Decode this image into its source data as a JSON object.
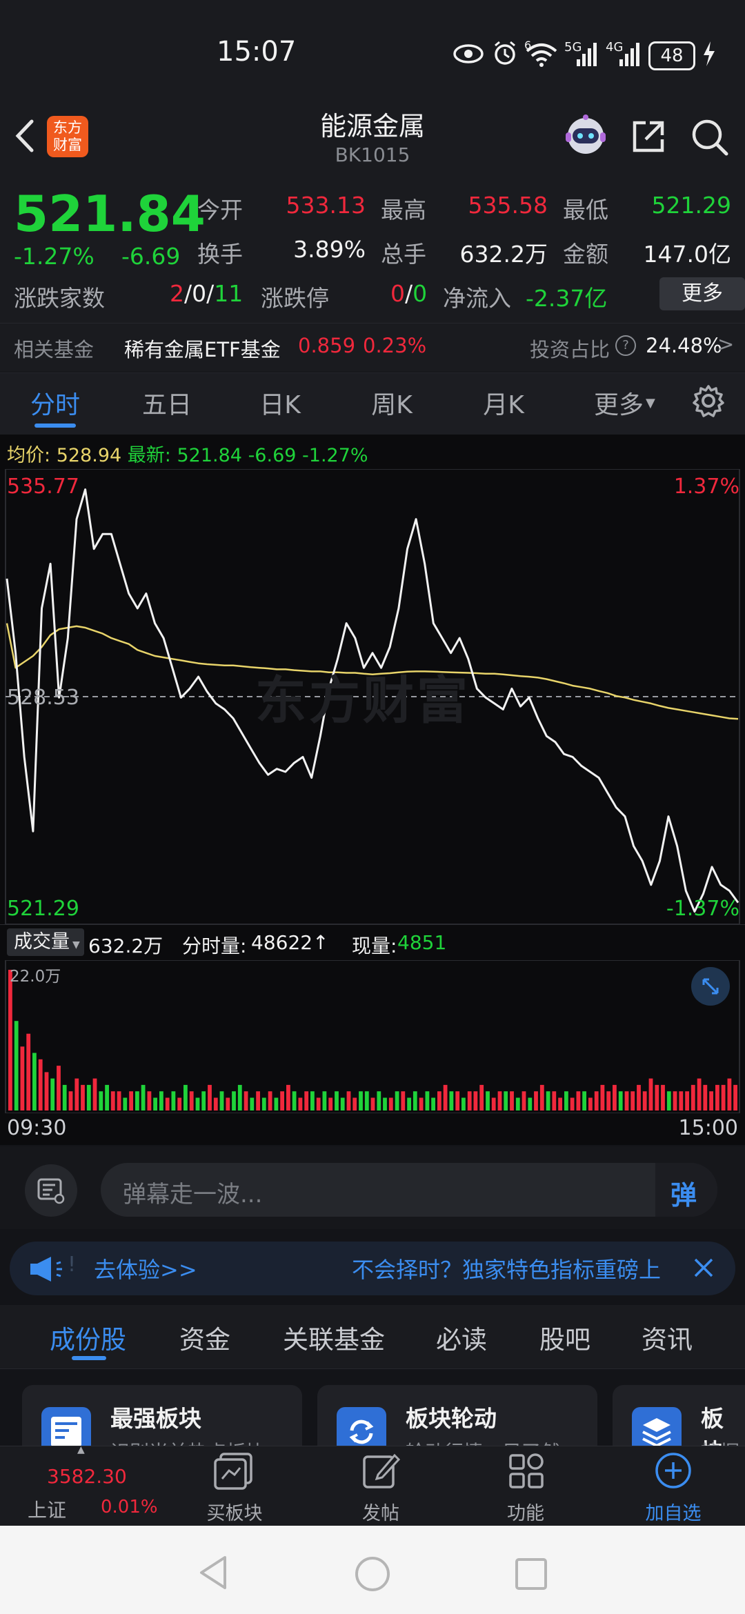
{
  "status_bar": {
    "time": "15:07",
    "signal_5g": "5G",
    "signal_4g": "4G",
    "wifi_badge": "6",
    "battery": "48"
  },
  "header": {
    "title": "能源金属",
    "code": "BK1015",
    "logo_text_1": "东方",
    "logo_text_2": "财富"
  },
  "quote": {
    "price": "521.84",
    "change_pct": "-1.27%",
    "change_abs": "-6.69",
    "open_label": "今开",
    "open": "533.13",
    "high_label": "最高",
    "high": "535.58",
    "low_label": "最低",
    "low": "521.29",
    "turnover_label": "换手",
    "turnover": "3.89%",
    "volume_label": "总手",
    "volume": "632.2万",
    "amount_label": "金额",
    "amount": "147.0亿",
    "breadth_label": "涨跌家数",
    "breadth_up": "2",
    "breadth_flat": "0",
    "breadth_down": "11",
    "sep": "/",
    "limit_label": "涨跌停",
    "limit_up": "0",
    "limit_down": "0",
    "netflow_label": "净流入",
    "netflow": "-2.37亿",
    "more_button": "更多"
  },
  "fund_bar": {
    "label": "相关基金",
    "fund_name": "稀有金属ETF基金",
    "fund_price": "0.859",
    "fund_change": "0.23%",
    "ratio_label": "投资占比",
    "ratio_value": "24.48%",
    "arrow": ">"
  },
  "tabs": [
    "分时",
    "五日",
    "日K",
    "周K",
    "月K",
    "更多"
  ],
  "chart_header": {
    "avg_label": "均价:",
    "avg_value": "528.94",
    "latest_label": "最新:",
    "latest_value": "521.84",
    "latest_change": "-6.69",
    "latest_pct": "-1.27%"
  },
  "chart_labels": {
    "y_top": "535.77",
    "y_mid": "528.53",
    "y_bottom": "521.29",
    "pct_top": "1.37%",
    "pct_bottom": "-1.37%",
    "watermark": "东方财富"
  },
  "volume_header": {
    "dropdown_label": "成交量",
    "total": "632.2万",
    "period_label": "分时量:",
    "period_value": "48622↑",
    "now_label": "现量:",
    "now_value": "4851",
    "scale": "22.0万"
  },
  "time_axis": {
    "start": "09:30",
    "end": "15:00"
  },
  "chart_data": {
    "type": "line",
    "title": "",
    "x_range": [
      "09:30",
      "15:00"
    ],
    "ylim": [
      521.29,
      535.77
    ],
    "pct_range": [
      "-1.37%",
      "1.37%"
    ],
    "reference": 528.53,
    "series": [
      {
        "values": [
          532.5,
          530.0,
          526.5,
          524.0,
          531.5,
          533.0,
          528.5,
          530.5,
          534.5,
          535.5,
          533.5,
          534.0,
          534.0,
          533.0,
          532.0,
          531.5,
          532.0,
          531.0,
          530.5,
          529.5,
          528.5,
          528.8,
          529.2,
          528.7,
          528.3,
          528.1,
          527.8,
          527.3,
          526.8,
          526.3,
          525.9,
          526.1,
          526.0,
          526.3,
          526.5,
          525.8,
          527.2,
          528.8,
          529.8,
          531.0,
          530.5,
          529.5,
          530.0,
          529.5,
          530.2,
          531.5,
          533.5,
          534.5,
          533.0,
          531.0,
          530.5,
          530.0,
          530.5,
          529.8,
          528.8,
          528.5,
          528.3,
          528.1,
          528.8,
          528.2,
          528.5,
          527.8,
          527.2,
          527.0,
          526.6,
          526.5,
          526.2,
          526.0,
          525.8,
          525.3,
          524.8,
          524.5,
          523.5,
          523.0,
          522.2,
          523.0,
          524.5,
          523.5,
          522.0,
          521.3,
          521.9,
          522.8,
          522.2,
          522.0,
          521.6
        ]
      },
      {
        "values": [
          531.0,
          529.5,
          529.7,
          529.9,
          530.2,
          530.6,
          530.8,
          530.85,
          530.9,
          530.85,
          530.75,
          530.65,
          530.5,
          530.4,
          530.3,
          530.1,
          530.0,
          529.9,
          529.85,
          529.8,
          529.75,
          529.7,
          529.65,
          529.62,
          529.6,
          529.58,
          529.58,
          529.55,
          529.52,
          529.5,
          529.48,
          529.45,
          529.45,
          529.42,
          529.4,
          529.38,
          529.38,
          529.35,
          529.35,
          529.33,
          529.33,
          529.3,
          529.28,
          529.3,
          529.32,
          529.35,
          529.37,
          529.38,
          529.38,
          529.37,
          529.36,
          529.35,
          529.34,
          529.33,
          529.32,
          529.3,
          529.3,
          529.28,
          529.25,
          529.22,
          529.2,
          529.17,
          529.12,
          529.05,
          528.98,
          528.9,
          528.85,
          528.8,
          528.72,
          528.65,
          528.55,
          528.5,
          528.42,
          528.36,
          528.3,
          528.22,
          528.15,
          528.1,
          528.05,
          528.0,
          527.95,
          527.9,
          527.85,
          527.8,
          527.78
        ]
      }
    ],
    "volume": {
      "ymax": 220000,
      "bars": [
        22,
        14,
        10,
        12,
        9,
        8,
        6,
        5,
        7,
        4,
        3,
        5,
        4,
        4,
        5,
        3,
        4,
        3,
        3,
        2,
        3,
        3,
        4,
        3,
        2,
        3,
        2,
        3,
        2,
        4,
        3,
        2,
        3,
        4,
        2,
        3,
        2,
        3,
        4,
        3,
        2,
        3,
        2,
        3,
        2,
        3,
        4,
        3,
        2,
        3,
        3,
        2,
        3,
        2,
        3,
        2,
        3,
        2,
        3,
        3,
        2,
        3,
        2,
        2,
        3,
        3,
        2,
        3,
        2,
        3,
        2,
        3,
        4,
        3,
        3,
        2,
        3,
        3,
        4,
        3,
        2,
        3,
        3,
        3,
        2,
        3,
        2,
        3,
        4,
        3,
        3,
        2,
        3,
        2,
        3,
        3,
        2,
        3,
        4,
        3,
        4,
        3,
        3,
        3,
        4,
        3,
        5,
        4,
        4,
        3,
        3,
        3,
        3,
        4,
        5,
        4,
        3,
        4,
        4,
        5,
        4
      ],
      "unit": "万",
      "colors": [
        "up",
        "down",
        "up",
        "up",
        "down",
        "up",
        "up",
        "down",
        "up",
        "down",
        "up",
        "up",
        "up",
        "down",
        "up",
        "down",
        "down",
        "up",
        "up",
        "down",
        "up",
        "down",
        "down",
        "up",
        "down",
        "down",
        "up",
        "down",
        "up",
        "down",
        "up",
        "down",
        "down",
        "up",
        "up",
        "down",
        "up",
        "down",
        "down",
        "up",
        "down",
        "up",
        "down",
        "up",
        "down",
        "up",
        "up",
        "down",
        "up",
        "up",
        "down",
        "up",
        "down",
        "up",
        "down",
        "down",
        "up",
        "up",
        "down",
        "down",
        "up",
        "down",
        "down",
        "up",
        "down",
        "up",
        "down",
        "down",
        "up",
        "down",
        "down",
        "up",
        "up",
        "down",
        "up",
        "down",
        "up",
        "up",
        "up",
        "down",
        "up",
        "up",
        "down",
        "up",
        "down",
        "up",
        "down",
        "up",
        "up",
        "down",
        "up",
        "up",
        "down",
        "up",
        "up",
        "down",
        "up",
        "up",
        "up",
        "up",
        "up",
        "down",
        "up",
        "up",
        "up",
        "up",
        "up",
        "up",
        "up",
        "down",
        "up",
        "up",
        "up",
        "up",
        "up",
        "up",
        "up",
        "up",
        "up",
        "up",
        "up"
      ]
    }
  },
  "danmu": {
    "placeholder": "弹幕走一波...",
    "button": "弹"
  },
  "ad": {
    "cta": "去体验>>",
    "text": "不会择时？独家特色指标重磅上"
  },
  "sub_tabs": [
    "成份股",
    "资金",
    "关联基金",
    "必读",
    "股吧",
    "资讯"
  ],
  "cards": [
    {
      "title": "最强板块",
      "desc": "识别当前热点板块"
    },
    {
      "title": "板块轮动",
      "desc": "轮动行情一目了然"
    },
    {
      "title": "板块",
      "desc": "挖掘"
    }
  ],
  "bottom_nav": {
    "index_value": "3582.30",
    "index_name": "上证",
    "index_change": "0.01%",
    "items": [
      "买板块",
      "发帖",
      "功能",
      "加自选"
    ]
  },
  "colors": {
    "up": "#f0283c",
    "down": "#1fd33a",
    "accent": "#3b8df0",
    "avg_line": "#e8d46a"
  }
}
